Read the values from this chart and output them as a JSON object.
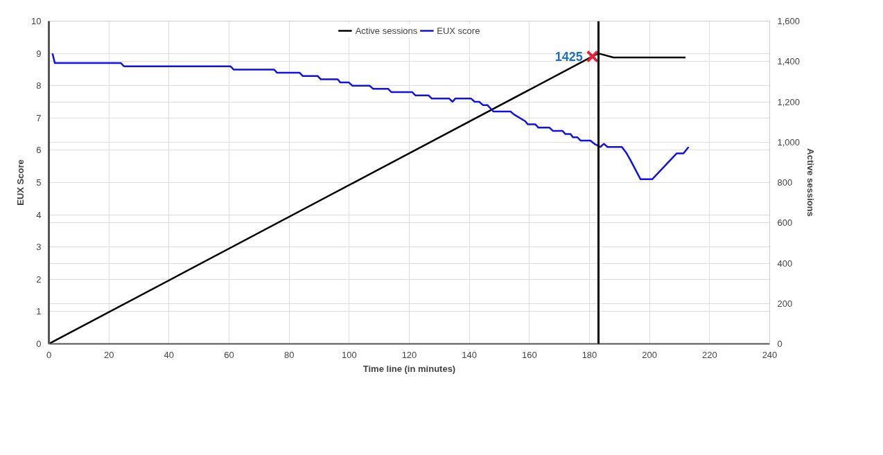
{
  "chart_data": {
    "type": "line",
    "xlabel": "Time line (in minutes)",
    "ylabel": "EUX Score",
    "y2label": "Active sessions",
    "xlim": [
      0,
      240
    ],
    "xticks": [
      0,
      20,
      40,
      60,
      80,
      100,
      120,
      140,
      160,
      180,
      200,
      220,
      240
    ],
    "ylim": [
      0,
      10
    ],
    "yticks": [
      0,
      1,
      2,
      3,
      4,
      5,
      6,
      7,
      8,
      9,
      10
    ],
    "y2lim": [
      0,
      1600
    ],
    "y2ticks": [
      0,
      200,
      400,
      600,
      800,
      {
        "value": 1000,
        "label": "1,000"
      },
      {
        "value": 1200,
        "label": "1,200"
      },
      {
        "value": 1400,
        "label": "1,400"
      },
      {
        "value": 1600,
        "label": "1,600"
      }
    ],
    "grid": true,
    "legend": "top",
    "ref_lines": [
      {
        "axis": "x",
        "value": 183,
        "color": "#000000"
      }
    ],
    "series": [
      {
        "name": "Active sessions",
        "axis": "y2",
        "color": "#000000",
        "x": [
          0,
          181,
          183,
          188,
          212
        ],
        "values": [
          0,
          1425,
          1440,
          1420,
          1420
        ]
      },
      {
        "type": "scatter",
        "axis": "y2",
        "color": "#e8203a",
        "marker": "cross",
        "x": [
          181
        ],
        "values": [
          1425
        ],
        "value_labels": [
          "1425"
        ]
      },
      {
        "name": "EUX score",
        "color": "#1010e8",
        "x": [
          1.2,
          2,
          24,
          25,
          60.5,
          61.5,
          75,
          76,
          83.5,
          84.5,
          89.5,
          90.5,
          96.2,
          97,
          99.9,
          101,
          106.8,
          108,
          113,
          114,
          121,
          122,
          126.4,
          127.5,
          133.3,
          134.4,
          135.3,
          140.6,
          141.8,
          143.3,
          144.5,
          146,
          148,
          153.7,
          155,
          158.6,
          159.5,
          162,
          163,
          166.7,
          167.8,
          171,
          172,
          173.7,
          174.5,
          176,
          177,
          180.3,
          181.6,
          183.6,
          184.8,
          186,
          190.8,
          192.4,
          193.6,
          197,
          200.9,
          209,
          211.3,
          213
        ],
        "values": [
          9.0,
          8.7,
          8.7,
          8.6,
          8.6,
          8.5,
          8.5,
          8.4,
          8.4,
          8.3,
          8.3,
          8.2,
          8.2,
          8.1,
          8.1,
          8.0,
          8.0,
          7.9,
          7.9,
          7.8,
          7.8,
          7.7,
          7.7,
          7.6,
          7.6,
          7.5,
          7.6,
          7.6,
          7.5,
          7.5,
          7.4,
          7.4,
          7.2,
          7.2,
          7.1,
          6.9,
          6.8,
          6.8,
          6.7,
          6.7,
          6.6,
          6.6,
          6.5,
          6.5,
          6.4,
          6.4,
          6.3,
          6.3,
          6.2,
          6.1,
          6.2,
          6.1,
          6.1,
          5.9,
          5.7,
          5.1,
          5.1,
          5.9,
          5.9,
          6.1
        ]
      }
    ]
  }
}
